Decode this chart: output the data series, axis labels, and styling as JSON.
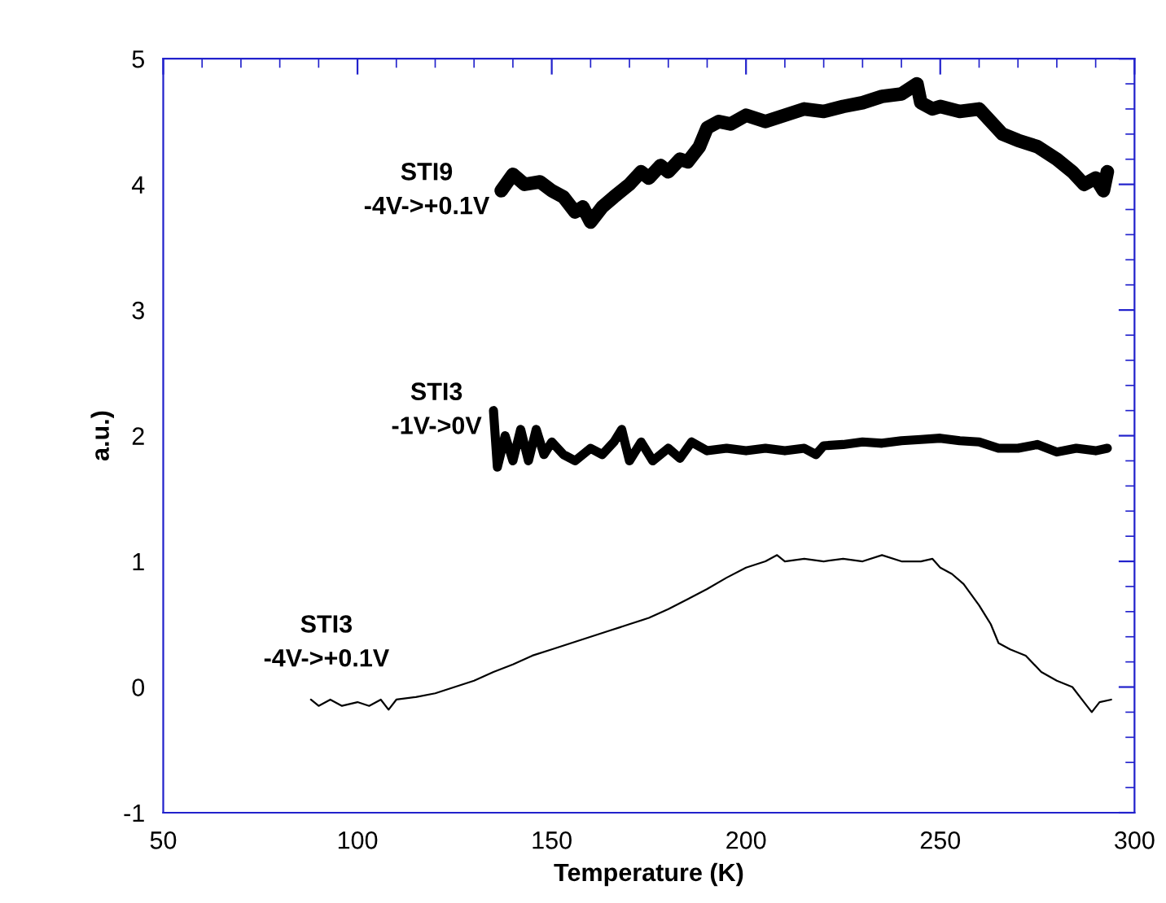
{
  "chart_data": {
    "type": "line",
    "xlabel": "Temperature (K)",
    "ylabel": "a.u.)",
    "xlim": [
      50,
      300
    ],
    "ylim": [
      -1,
      5
    ],
    "xticks": [
      50,
      100,
      150,
      200,
      250,
      300
    ],
    "yticks": [
      -1,
      0,
      1,
      2,
      3,
      4,
      5
    ],
    "grid": false,
    "legend": false,
    "marker": "none",
    "line_style": "solid",
    "series": [
      {
        "name": "STI9\n-4V->+0.1V",
        "color": "#000000",
        "x": [
          137,
          140,
          143,
          147,
          150,
          153,
          156,
          158,
          160,
          163,
          166,
          170,
          173,
          175,
          178,
          180,
          183,
          185,
          188,
          190,
          193,
          196,
          200,
          205,
          210,
          215,
          220,
          225,
          230,
          235,
          240,
          244,
          245,
          248,
          250,
          255,
          260,
          263,
          266,
          270,
          275,
          280,
          284,
          287,
          290,
          292,
          293
        ],
        "values": [
          3.95,
          4.08,
          4.0,
          4.02,
          3.95,
          3.9,
          3.78,
          3.82,
          3.7,
          3.82,
          3.9,
          4.0,
          4.1,
          4.05,
          4.15,
          4.1,
          4.2,
          4.18,
          4.3,
          4.45,
          4.5,
          4.48,
          4.55,
          4.5,
          4.55,
          4.6,
          4.58,
          4.62,
          4.65,
          4.7,
          4.72,
          4.8,
          4.65,
          4.6,
          4.62,
          4.58,
          4.6,
          4.5,
          4.4,
          4.35,
          4.3,
          4.2,
          4.1,
          4.0,
          4.05,
          3.95,
          4.1
        ]
      },
      {
        "name": "STI3\n-1V->0V",
        "color": "#000000",
        "x": [
          135,
          136,
          138,
          140,
          142,
          144,
          146,
          148,
          150,
          153,
          156,
          160,
          163,
          166,
          168,
          170,
          173,
          176,
          180,
          183,
          186,
          190,
          195,
          200,
          205,
          210,
          215,
          218,
          220,
          225,
          230,
          235,
          240,
          245,
          250,
          255,
          260,
          265,
          270,
          275,
          280,
          285,
          290,
          293
        ],
        "values": [
          2.2,
          1.75,
          2.0,
          1.8,
          2.05,
          1.8,
          2.05,
          1.85,
          1.95,
          1.85,
          1.8,
          1.9,
          1.85,
          1.95,
          2.05,
          1.8,
          1.95,
          1.8,
          1.9,
          1.82,
          1.95,
          1.88,
          1.9,
          1.88,
          1.9,
          1.88,
          1.9,
          1.85,
          1.92,
          1.93,
          1.95,
          1.94,
          1.96,
          1.97,
          1.98,
          1.96,
          1.95,
          1.9,
          1.9,
          1.93,
          1.87,
          1.9,
          1.88,
          1.9
        ]
      },
      {
        "name": "STI3\n-4V->+0.1V",
        "color": "#000000",
        "x": [
          88,
          90,
          93,
          96,
          100,
          103,
          106,
          108,
          110,
          115,
          120,
          125,
          130,
          135,
          140,
          145,
          150,
          155,
          160,
          165,
          170,
          175,
          180,
          185,
          190,
          195,
          200,
          205,
          208,
          210,
          215,
          220,
          225,
          230,
          235,
          240,
          245,
          248,
          250,
          253,
          256,
          260,
          263,
          265,
          268,
          272,
          276,
          280,
          284,
          287,
          289,
          291,
          294
        ],
        "values": [
          -0.1,
          -0.15,
          -0.1,
          -0.15,
          -0.12,
          -0.15,
          -0.1,
          -0.18,
          -0.1,
          -0.08,
          -0.05,
          0.0,
          0.05,
          0.12,
          0.18,
          0.25,
          0.3,
          0.35,
          0.4,
          0.45,
          0.5,
          0.55,
          0.62,
          0.7,
          0.78,
          0.87,
          0.95,
          1.0,
          1.05,
          1.0,
          1.02,
          1.0,
          1.02,
          1.0,
          1.05,
          1.0,
          1.0,
          1.02,
          0.95,
          0.9,
          0.82,
          0.65,
          0.5,
          0.35,
          0.3,
          0.25,
          0.12,
          0.05,
          0.0,
          -0.12,
          -0.2,
          -0.12,
          -0.1
        ]
      }
    ]
  }
}
